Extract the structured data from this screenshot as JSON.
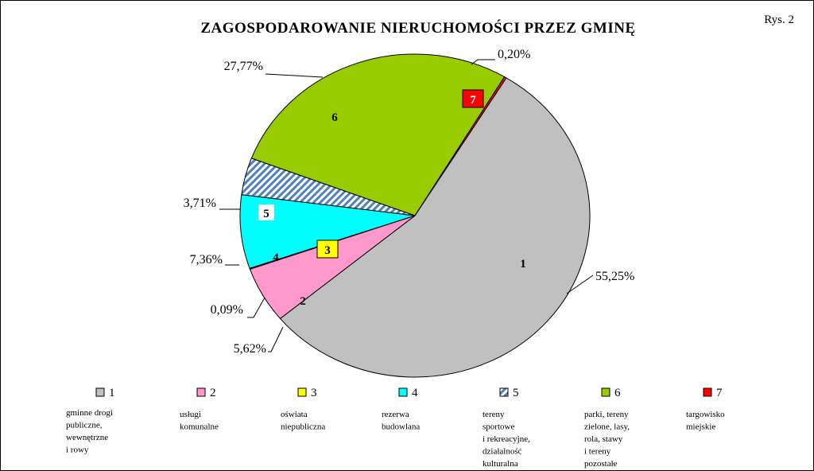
{
  "figure_label": "Rys. 2",
  "chart_data": {
    "type": "pie",
    "title": "ZAGOSPODAROWANIE  NIERUCHOMOŚCI  PRZEZ  GMINĘ",
    "slices": [
      {
        "id": "1",
        "value": 55.25,
        "label": "55,25%",
        "color": "#c0c0c0",
        "legend_text": [
          "gminne drogi",
          "publiczne,",
          "wewnętrzne",
          "i rowy"
        ]
      },
      {
        "id": "2",
        "value": 5.62,
        "label": "5,62%",
        "color": "#ff99cc",
        "legend_text": [
          "usługi",
          "komunalne"
        ]
      },
      {
        "id": "3",
        "value": 0.09,
        "label": "0,09%",
        "color": "#ffff00",
        "legend_text": [
          "oświata",
          "niepubliczna"
        ]
      },
      {
        "id": "4",
        "value": 7.36,
        "label": "7,36%",
        "color": "#00ffff",
        "legend_text": [
          "rezerwa",
          "budowlana"
        ]
      },
      {
        "id": "5",
        "value": 3.71,
        "label": "3,71%",
        "color": "#4f81bd",
        "pattern": "diagonal-hatch",
        "legend_text": [
          "tereny",
          "sportowe",
          "i rekreacyjne,",
          "działalność",
          "kulturalna"
        ]
      },
      {
        "id": "6",
        "value": 27.77,
        "label": "27,77%",
        "color": "#99cc00",
        "legend_text": [
          "parki, tereny",
          "zielone, lasy,",
          "rola, stawy",
          "i tereny",
          "pozostałe"
        ]
      },
      {
        "id": "7",
        "value": 0.2,
        "label": "0,20%",
        "color": "#ff0000",
        "legend_text": [
          "targowisko",
          "miejskie"
        ]
      }
    ],
    "legend_placement": "bottom"
  }
}
